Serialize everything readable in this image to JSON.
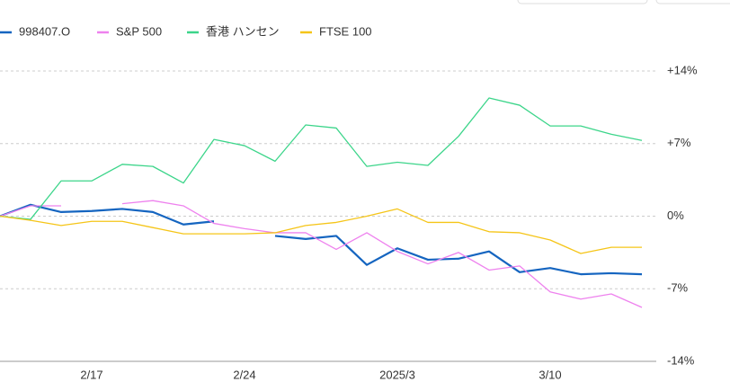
{
  "chart_data": {
    "type": "line",
    "categories": [
      null,
      null,
      null,
      "2/17",
      null,
      null,
      null,
      null,
      "2/24",
      null,
      null,
      null,
      null,
      "2025/3",
      null,
      null,
      null,
      null,
      "3/10",
      null,
      null,
      null
    ],
    "series": [
      {
        "name": "998407.O",
        "color": "#1565c0",
        "values": [
          0,
          1.1,
          0.4,
          0.5,
          0.7,
          0.4,
          -0.8,
          -0.5,
          null,
          -1.9,
          -2.2,
          -1.9,
          -4.7,
          -3.1,
          -4.2,
          -4.1,
          -3.4,
          -5.4,
          -5.0,
          -5.6,
          -5.5,
          -5.6
        ]
      },
      {
        "name": "S&P 500",
        "color": "#ee82ee",
        "values": [
          0,
          1.0,
          1.0,
          null,
          1.2,
          1.5,
          1.0,
          -0.7,
          -1.2,
          -1.6,
          -1.6,
          -3.2,
          -1.6,
          -3.4,
          -4.6,
          -3.5,
          -5.2,
          -4.8,
          -7.3,
          -8.0,
          -7.5,
          -8.8
        ]
      },
      {
        "name": "香港 ハンセン",
        "color": "#3cd58a",
        "values": [
          0,
          -0.3,
          3.4,
          3.4,
          5.0,
          4.8,
          3.2,
          7.4,
          6.8,
          5.3,
          8.8,
          8.5,
          4.8,
          5.2,
          4.9,
          7.7,
          11.4,
          10.7,
          8.7,
          8.7,
          7.9,
          7.3
        ]
      },
      {
        "name": "FTSE 100",
        "color": "#f5c518",
        "values": [
          0,
          -0.4,
          -0.9,
          -0.5,
          -0.5,
          -1.1,
          -1.7,
          -1.7,
          -1.7,
          -1.6,
          -0.9,
          -0.6,
          0,
          0.7,
          -0.6,
          -0.6,
          -1.5,
          -1.6,
          -2.3,
          -3.6,
          -3.0,
          -3.0
        ]
      }
    ],
    "ylim": [
      -14,
      14
    ],
    "yticks": [
      {
        "value": 14,
        "label": "+14%"
      },
      {
        "value": 7,
        "label": "+7%"
      },
      {
        "value": 0,
        "label": "0%"
      },
      {
        "value": -7,
        "label": "-7%"
      },
      {
        "value": -14,
        "label": "-14%"
      }
    ],
    "grid": true
  }
}
